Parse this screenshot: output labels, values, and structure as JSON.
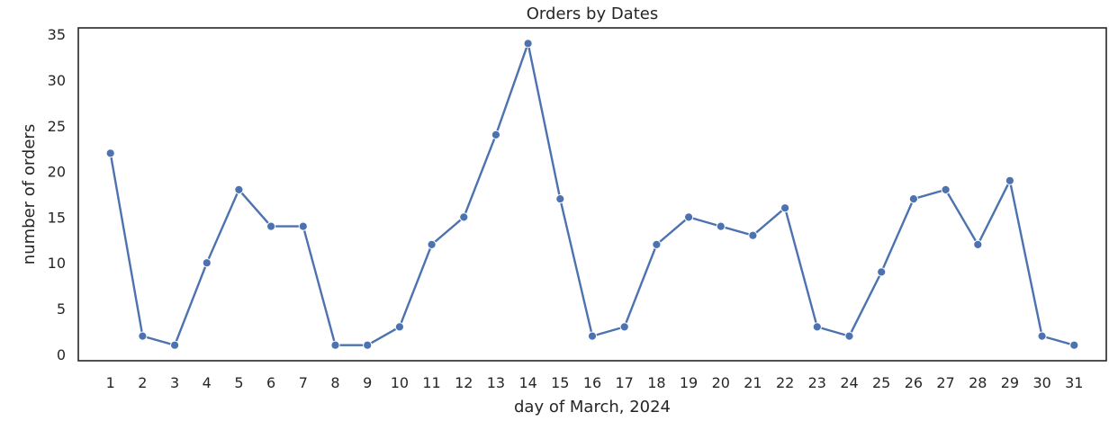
{
  "chart_data": {
    "type": "line",
    "title": "Orders by Dates",
    "xlabel": "day of March, 2024",
    "ylabel": "number of orders",
    "x": [
      1,
      2,
      3,
      4,
      5,
      6,
      7,
      8,
      9,
      10,
      11,
      12,
      13,
      14,
      15,
      16,
      17,
      18,
      19,
      20,
      21,
      22,
      23,
      24,
      25,
      26,
      27,
      28,
      29,
      30,
      31
    ],
    "series": [
      {
        "values": [
          22,
          2,
          1,
          10,
          18,
          14,
          14,
          1,
          1,
          3,
          12,
          15,
          24,
          34,
          17,
          2,
          3,
          12,
          15,
          14,
          13,
          16,
          3,
          2,
          9,
          17,
          18,
          12,
          19,
          2,
          1
        ]
      }
    ],
    "xlim": [
      0,
      32
    ],
    "ylim": [
      -0.7,
      35.7
    ],
    "yticks": [
      0,
      5,
      10,
      15,
      20,
      25,
      30,
      35
    ],
    "grid": false,
    "legend": "none",
    "line_color": "#4c72b0",
    "marker": "circle"
  }
}
